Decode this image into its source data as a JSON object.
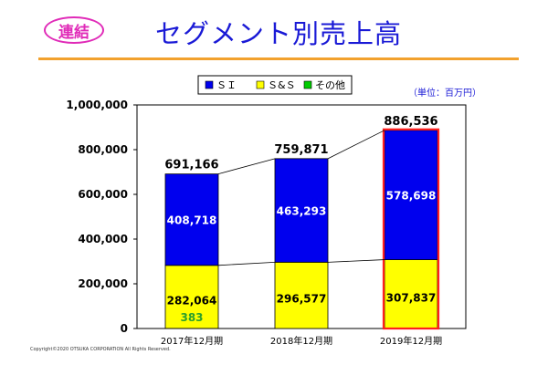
{
  "header": {
    "badge": "連結",
    "title": "セグメント別売上高"
  },
  "unit_note": "（単位：百万円）",
  "copyright": "Copyright©2020 OTSUKA CORPORATION All Rights Reserved.",
  "colors": {
    "SI": "#0000ee",
    "S&S": "#ffff00",
    "other": "#00cc00",
    "highlight": "#ff1f1f",
    "other_label": "#2ca02c",
    "title": "#1a1ad6",
    "badge": "#e02bb8",
    "rule": "#f2a12d"
  },
  "chart_data": {
    "type": "bar",
    "stacked": true,
    "categories": [
      "2017年12月期",
      "2018年12月期",
      "2019年12月期"
    ],
    "series": [
      {
        "name": "その他",
        "values": [
          383,
          0,
          0
        ],
        "color_key": "other"
      },
      {
        "name": "S&S",
        "values": [
          282064,
          296577,
          307837
        ],
        "color_key": "S&S"
      },
      {
        "name": "ＳＩ",
        "values": [
          408718,
          463293,
          578698
        ],
        "color_key": "SI"
      }
    ],
    "segment_labels": [
      [
        "383",
        "282,064",
        "408,718"
      ],
      [
        "",
        "296,577",
        "463,293"
      ],
      [
        "",
        "307,837",
        "578,698"
      ]
    ],
    "totals": [
      691166,
      759871,
      886536
    ],
    "total_labels": [
      "691,166",
      "759,871",
      "886,536"
    ],
    "ylim": [
      0,
      1000000
    ],
    "yticks": [
      0,
      200000,
      400000,
      600000,
      800000,
      1000000
    ],
    "ytick_labels": [
      "0",
      "200,000",
      "400,000",
      "600,000",
      "800,000",
      "1,000,000"
    ],
    "legend_labels": [
      "ＳＩ",
      "Ｓ&Ｓ",
      "その他"
    ],
    "legend_placement": "top-center",
    "highlighted_category": "2019年12月期",
    "connector_lines": true,
    "grid": false
  }
}
